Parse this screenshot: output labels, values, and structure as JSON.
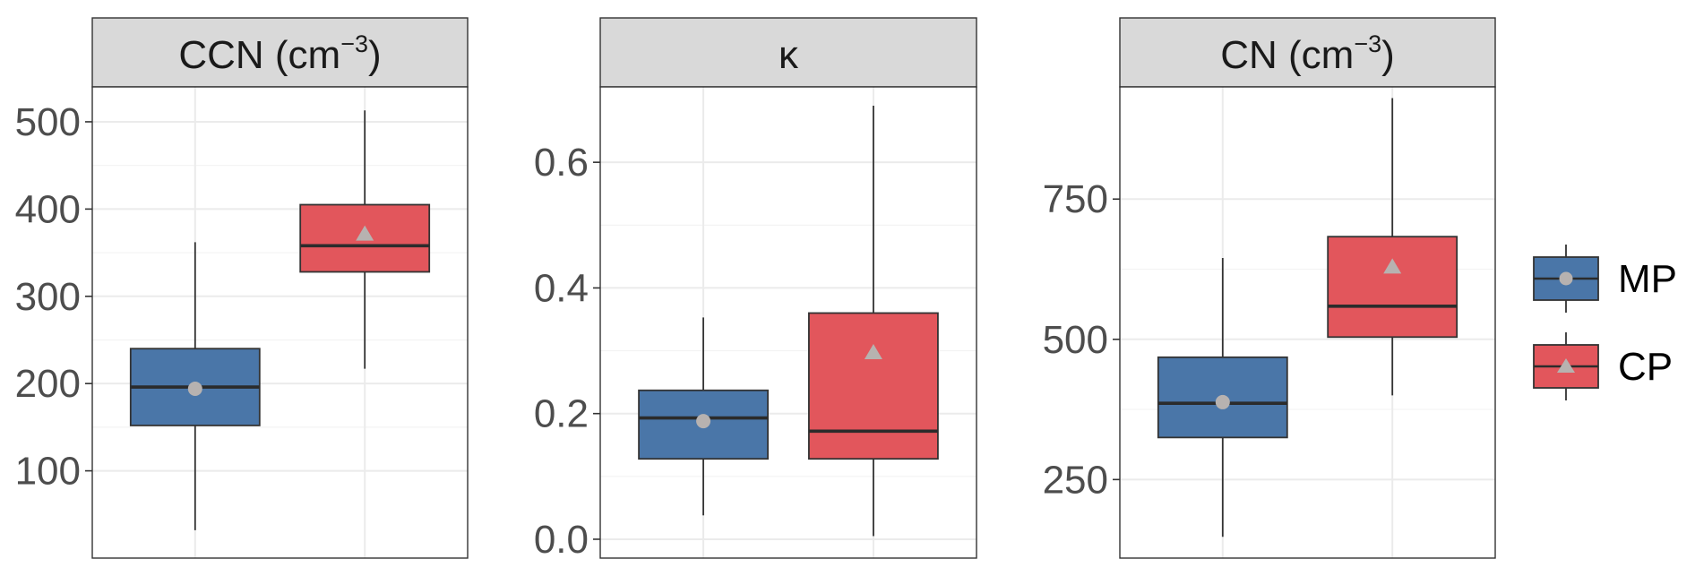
{
  "chart_data": [
    {
      "type": "box",
      "strip_title": {
        "text": "CCN (cm",
        "sup": "−3",
        "close": ")"
      },
      "ylim": [
        0,
        540
      ],
      "yticks": [
        100,
        200,
        300,
        400,
        500
      ],
      "grid": true,
      "boxes": [
        {
          "group": "MP",
          "whisker_low": 32,
          "q1": 152,
          "median": 196,
          "q3": 240,
          "whisker_high": 362,
          "mean": 194
        },
        {
          "group": "CP",
          "whisker_low": 217,
          "q1": 328,
          "median": 358,
          "q3": 405,
          "whisker_high": 513,
          "mean": 372
        }
      ]
    },
    {
      "type": "box",
      "strip_title": {
        "text": "κ",
        "sup": "",
        "close": ""
      },
      "ylim": [
        -0.03,
        0.72
      ],
      "yticks": [
        0.0,
        0.2,
        0.4,
        0.6
      ],
      "ytick_labels": [
        "0.0",
        "0.2",
        "0.4",
        "0.6"
      ],
      "grid": true,
      "boxes": [
        {
          "group": "MP",
          "whisker_low": 0.038,
          "q1": 0.128,
          "median": 0.193,
          "q3": 0.237,
          "whisker_high": 0.353,
          "mean": 0.188
        },
        {
          "group": "CP",
          "whisker_low": 0.005,
          "q1": 0.128,
          "median": 0.172,
          "q3": 0.36,
          "whisker_high": 0.69,
          "mean": 0.298
        }
      ]
    },
    {
      "type": "box",
      "strip_title": {
        "text": "CN (cm",
        "sup": "−3",
        "close": ")"
      },
      "ylim": [
        110,
        950
      ],
      "yticks": [
        250,
        500,
        750
      ],
      "grid": true,
      "boxes": [
        {
          "group": "MP",
          "whisker_low": 148,
          "q1": 325,
          "median": 386,
          "q3": 468,
          "whisker_high": 645,
          "mean": 388
        },
        {
          "group": "CP",
          "whisker_low": 400,
          "q1": 504,
          "median": 559,
          "q3": 683,
          "whisker_high": 930,
          "mean": 630
        }
      ]
    }
  ],
  "legend": {
    "position": "right",
    "items": [
      {
        "label": "MP",
        "fill": "#4a76a8",
        "marker": "circle"
      },
      {
        "label": "CP",
        "fill": "#e2565c",
        "marker": "triangle"
      }
    ]
  },
  "colors": {
    "MP": "#4a76a8",
    "CP": "#e2565c",
    "mean_marker": "#b7b2b0",
    "strip_bg": "#d9d9d9",
    "panel_border": "#333333",
    "grid": "#ebebeb",
    "tick_text": "#4d4d4d"
  }
}
